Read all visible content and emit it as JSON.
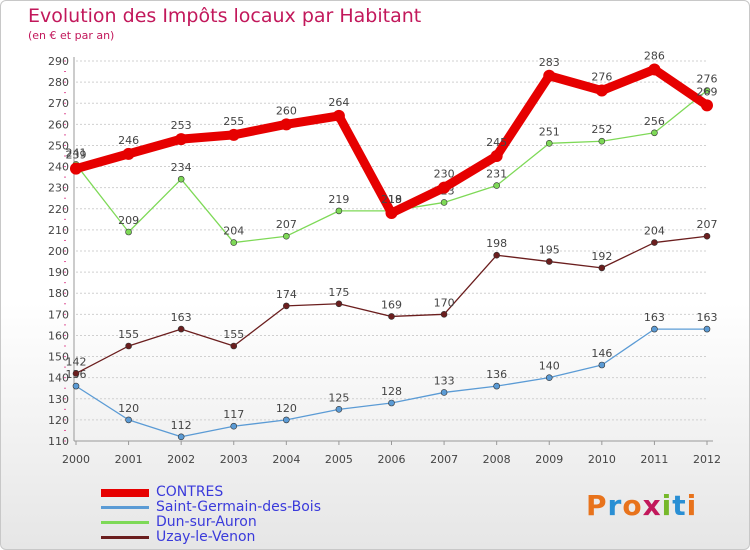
{
  "header": {
    "title": "Evolution des Impôts locaux par Habitant",
    "subtitle": "(en € et par an)"
  },
  "logo": {
    "text": "Proxiti",
    "colors": [
      "#e8731c",
      "#2a8fd4",
      "#e8731c",
      "#c2185b",
      "#76b82a",
      "#2a8fd4",
      "#e8731c"
    ]
  },
  "colors": {
    "title": "#c2185b",
    "legend_text": "#3a3adb",
    "axis_text": "#444444"
  },
  "chart_data": {
    "type": "line",
    "title": "Evolution des Impôts locaux par Habitant",
    "subtitle": "(en € et par an)",
    "xlabel": "",
    "ylabel": "",
    "categories": [
      "2000",
      "2001",
      "2002",
      "2003",
      "2004",
      "2005",
      "2006",
      "2007",
      "2008",
      "2009",
      "2010",
      "2011",
      "2012"
    ],
    "yticks": [
      110,
      120,
      130,
      140,
      150,
      160,
      170,
      180,
      190,
      200,
      210,
      220,
      230,
      240,
      250,
      260,
      270,
      280,
      290
    ],
    "ylim": [
      110,
      290
    ],
    "grid": true,
    "legend_position": "bottom-left",
    "series": [
      {
        "name": "CONTRES",
        "color": "#e60000",
        "thick": true,
        "values": [
          239,
          246,
          253,
          255,
          260,
          264,
          218,
          230,
          245,
          283,
          276,
          286,
          269
        ]
      },
      {
        "name": "Saint-Germain-des-Bois",
        "color": "#5b9bd5",
        "thick": false,
        "values": [
          136,
          120,
          112,
          117,
          120,
          125,
          128,
          133,
          136,
          140,
          146,
          163,
          163
        ]
      },
      {
        "name": "Dun-sur-Auron",
        "color": "#7ed957",
        "thick": false,
        "values": [
          241,
          209,
          234,
          204,
          207,
          219,
          219,
          223,
          231,
          251,
          252,
          256,
          276
        ]
      },
      {
        "name": "Uzay-le-Venon",
        "color": "#6b1e1e",
        "thick": false,
        "values": [
          142,
          155,
          163,
          155,
          174,
          175,
          169,
          170,
          198,
          195,
          192,
          204,
          207
        ]
      }
    ]
  }
}
